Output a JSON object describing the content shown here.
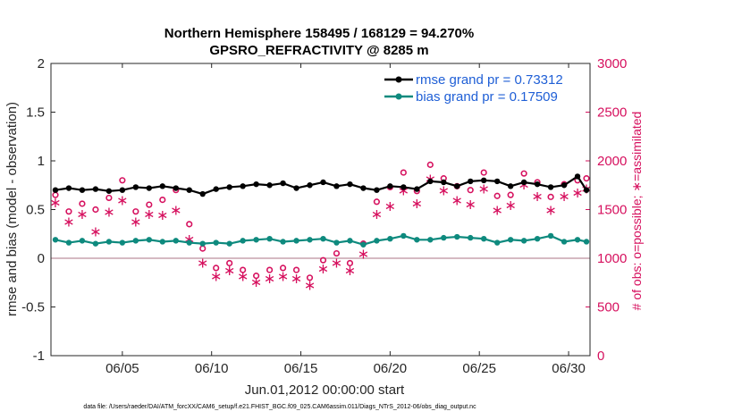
{
  "chart_data": {
    "type": "line",
    "title": "Northern Hemisphere 158495 / 168129 = 94.270%",
    "subtitle": "GPSRO_REFRACTIVITY @ 8285 m",
    "xlabel": "Jun.01,2012 00:00:00 start",
    "ylabel": "rmse and bias (model - observation)",
    "y2label": "# of obs: o=possible; ∗=assimilated",
    "footnote": "data file: /Users/raeder/DAI/ATM_forcXX/CAM6_setup/f.e21.FHIST_BGC.f09_025.CAM6assim.011/Diags_NTrS_2012-06/obs_diag_output.nc",
    "xlim": [
      1.0,
      31.2
    ],
    "ylim": [
      -1,
      2
    ],
    "y2lim": [
      0,
      3000
    ],
    "x_ticks": [
      5,
      10,
      15,
      20,
      25,
      30
    ],
    "x_tick_labels": [
      "06/05",
      "06/10",
      "06/15",
      "06/20",
      "06/25",
      "06/30"
    ],
    "y_ticks": [
      -1,
      -0.5,
      0,
      0.5,
      1,
      1.5,
      2
    ],
    "y_tick_labels": [
      "-1",
      "-0.5",
      "0",
      "0.5",
      "1",
      "1.5",
      "2"
    ],
    "y2_ticks": [
      0,
      500,
      1000,
      1500,
      2000,
      2500,
      3000
    ],
    "y2_tick_labels": [
      "0",
      "500",
      "1000",
      "1500",
      "2000",
      "2500",
      "3000"
    ],
    "legend_position": "top-right",
    "colors": {
      "rmse": "#000000",
      "bias": "#0e8a7e",
      "obs": "#d6105e",
      "zero_line": "#c7a3ad",
      "axis": "#262626",
      "legend_text": "#1f5fd6"
    },
    "series": [
      {
        "name": "rmse grand pr = 0.73312",
        "axis": "left",
        "x": [
          1.25,
          2.0,
          2.75,
          3.5,
          4.25,
          5.0,
          5.75,
          6.5,
          7.25,
          8.0,
          8.75,
          9.5,
          10.25,
          11.0,
          11.75,
          12.5,
          13.25,
          14.0,
          14.75,
          15.5,
          16.25,
          17.0,
          17.75,
          18.5,
          19.25,
          20.0,
          20.75,
          21.5,
          22.25,
          23.0,
          23.75,
          24.5,
          25.25,
          26.0,
          26.75,
          27.5,
          28.25,
          29.0,
          29.75,
          30.5,
          31.0
        ],
        "values": [
          0.7,
          0.72,
          0.7,
          0.71,
          0.69,
          0.7,
          0.73,
          0.72,
          0.74,
          0.72,
          0.7,
          0.66,
          0.71,
          0.73,
          0.74,
          0.76,
          0.75,
          0.77,
          0.72,
          0.75,
          0.78,
          0.74,
          0.76,
          0.72,
          0.7,
          0.74,
          0.73,
          0.71,
          0.79,
          0.78,
          0.74,
          0.79,
          0.8,
          0.79,
          0.74,
          0.78,
          0.76,
          0.73,
          0.75,
          0.84,
          0.7
        ]
      },
      {
        "name": "bias grand pr = 0.17509",
        "axis": "left",
        "x": [
          1.25,
          2.0,
          2.75,
          3.5,
          4.25,
          5.0,
          5.75,
          6.5,
          7.25,
          8.0,
          8.75,
          9.5,
          10.25,
          11.0,
          11.75,
          12.5,
          13.25,
          14.0,
          14.75,
          15.5,
          16.25,
          17.0,
          17.75,
          18.5,
          19.25,
          20.0,
          20.75,
          21.5,
          22.25,
          23.0,
          23.75,
          24.5,
          25.25,
          26.0,
          26.75,
          27.5,
          28.25,
          29.0,
          29.75,
          30.5,
          31.0
        ],
        "values": [
          0.19,
          0.16,
          0.18,
          0.15,
          0.17,
          0.16,
          0.18,
          0.19,
          0.17,
          0.18,
          0.16,
          0.15,
          0.16,
          0.15,
          0.18,
          0.19,
          0.2,
          0.17,
          0.18,
          0.19,
          0.2,
          0.16,
          0.18,
          0.14,
          0.18,
          0.2,
          0.23,
          0.19,
          0.19,
          0.21,
          0.22,
          0.21,
          0.2,
          0.16,
          0.19,
          0.18,
          0.2,
          0.23,
          0.17,
          0.19,
          0.17
        ]
      },
      {
        "name": "# of obs possible",
        "axis": "right",
        "marker": "o",
        "x": [
          1.25,
          2.0,
          2.75,
          3.5,
          4.25,
          5.0,
          5.75,
          6.5,
          7.25,
          8.0,
          8.75,
          9.5,
          10.25,
          11.0,
          11.75,
          12.5,
          13.25,
          14.0,
          14.75,
          15.5,
          16.25,
          17.0,
          17.75,
          18.5,
          19.25,
          20.0,
          20.75,
          21.5,
          22.25,
          23.0,
          23.75,
          24.5,
          25.25,
          26.0,
          26.75,
          27.5,
          28.25,
          29.0,
          29.75,
          30.5,
          31.0
        ],
        "values": [
          1650,
          1480,
          1560,
          1500,
          1620,
          1800,
          1480,
          1550,
          1600,
          1700,
          1350,
          1100,
          900,
          950,
          880,
          820,
          880,
          900,
          880,
          800,
          980,
          1050,
          950,
          1150,
          1580,
          1730,
          1880,
          1690,
          1960,
          1820,
          1740,
          1700,
          1880,
          1640,
          1650,
          1870,
          1780,
          1630,
          1760,
          1800,
          1820
        ]
      },
      {
        "name": "# of obs assimilated",
        "axis": "right",
        "marker": "*",
        "x": [
          1.25,
          2.0,
          2.75,
          3.5,
          4.25,
          5.0,
          5.75,
          6.5,
          7.25,
          8.0,
          8.75,
          9.5,
          10.25,
          11.0,
          11.75,
          12.5,
          13.25,
          14.0,
          14.75,
          15.5,
          16.25,
          17.0,
          17.75,
          18.5,
          19.25,
          20.0,
          20.75,
          21.5,
          22.25,
          23.0,
          23.75,
          24.5,
          25.25,
          26.0,
          26.75,
          27.5,
          28.25,
          29.0,
          29.75,
          30.5,
          31.0
        ],
        "values": [
          1580,
          1380,
          1460,
          1280,
          1480,
          1600,
          1380,
          1460,
          1450,
          1500,
          1200,
          960,
          820,
          880,
          820,
          760,
          800,
          820,
          800,
          730,
          900,
          960,
          880,
          1050,
          1460,
          1540,
          1700,
          1570,
          1820,
          1700,
          1600,
          1560,
          1720,
          1500,
          1550,
          1760,
          1640,
          1500,
          1640,
          1680,
          1720
        ]
      }
    ]
  }
}
